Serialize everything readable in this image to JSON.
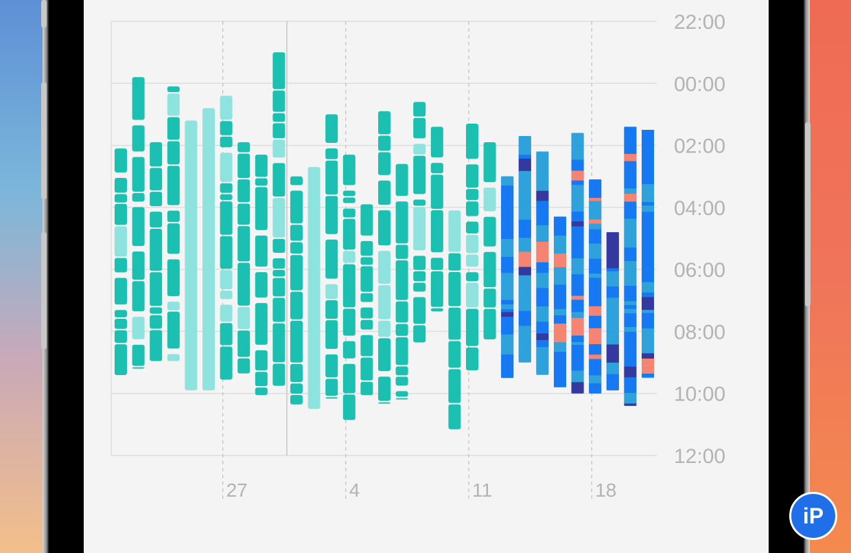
{
  "chart_data": {
    "type": "bar",
    "title": "",
    "y_ticks": [
      "22:00",
      "00:00",
      "02:00",
      "04:00",
      "06:00",
      "08:00",
      "10:00",
      "12:00"
    ],
    "y_range_hours": [
      -2,
      12
    ],
    "x_ticks": [
      {
        "label": "27",
        "day_index": 6
      },
      {
        "label": "4",
        "day_index": 13
      },
      {
        "label": "11",
        "day_index": 20
      },
      {
        "label": "18",
        "day_index": 27
      }
    ],
    "grid": "horizontal solid, vertical dashed at week ticks",
    "stage_colors": {
      "asleep": "#1cc0b0",
      "unspecified_light": "#8fe3de",
      "rem": "#2fa2dc",
      "core": "#1779f2",
      "deep": "#33399e",
      "awake": "#f68472"
    },
    "series": [
      {
        "name": "",
        "values": [
          {
            "start": 2.1,
            "end": 9.5,
            "type": "asleep"
          },
          {
            "start": -0.2,
            "end": 9.2,
            "type": "asleep"
          },
          {
            "start": 1.9,
            "end": 9.0,
            "type": "asleep"
          },
          {
            "start": 0.1,
            "end": 9.0,
            "type": "asleep"
          },
          {
            "start": 1.2,
            "end": 9.9,
            "type": "light"
          },
          {
            "start": 0.8,
            "end": 9.9,
            "type": "light"
          },
          {
            "start": 0.4,
            "end": 9.6,
            "type": "asleep"
          },
          {
            "start": 1.9,
            "end": 9.4,
            "type": "asleep"
          },
          {
            "start": 2.3,
            "end": 10.1,
            "type": "asleep"
          },
          {
            "start": -1.0,
            "end": 9.8,
            "type": "asleep"
          },
          {
            "start": 3.0,
            "end": 10.4,
            "type": "asleep"
          },
          {
            "start": 2.7,
            "end": 10.5,
            "type": "light"
          },
          {
            "start": 1.0,
            "end": 10.2,
            "type": "asleep"
          },
          {
            "start": 2.3,
            "end": 10.9,
            "type": "asleep"
          },
          {
            "start": 3.9,
            "end": 10.1,
            "type": "asleep"
          },
          {
            "start": 0.9,
            "end": 10.3,
            "type": "asleep"
          },
          {
            "start": 2.6,
            "end": 10.2,
            "type": "asleep"
          },
          {
            "start": 0.6,
            "end": 8.4,
            "type": "asleep"
          },
          {
            "start": 1.4,
            "end": 7.4,
            "type": "asleep"
          },
          {
            "start": 4.1,
            "end": 11.2,
            "type": "asleep"
          },
          {
            "start": 1.3,
            "end": 9.3,
            "type": "asleep"
          },
          {
            "start": 1.9,
            "end": 8.3,
            "type": "asleep"
          },
          {
            "start": 3.0,
            "end": 9.5,
            "type": "stages"
          },
          {
            "start": 1.7,
            "end": 9.0,
            "type": "stages"
          },
          {
            "start": 2.2,
            "end": 9.4,
            "type": "stages"
          },
          {
            "start": 4.3,
            "end": 9.8,
            "type": "stages"
          },
          {
            "start": 1.6,
            "end": 10.0,
            "type": "stages"
          },
          {
            "start": 3.1,
            "end": 10.0,
            "type": "stages"
          },
          {
            "start": 4.8,
            "end": 9.9,
            "type": "stages"
          },
          {
            "start": 1.4,
            "end": 10.4,
            "type": "stages"
          },
          {
            "start": 1.5,
            "end": 9.5,
            "type": "stages"
          }
        ]
      }
    ],
    "legend": "none"
  },
  "watermark": "iP"
}
